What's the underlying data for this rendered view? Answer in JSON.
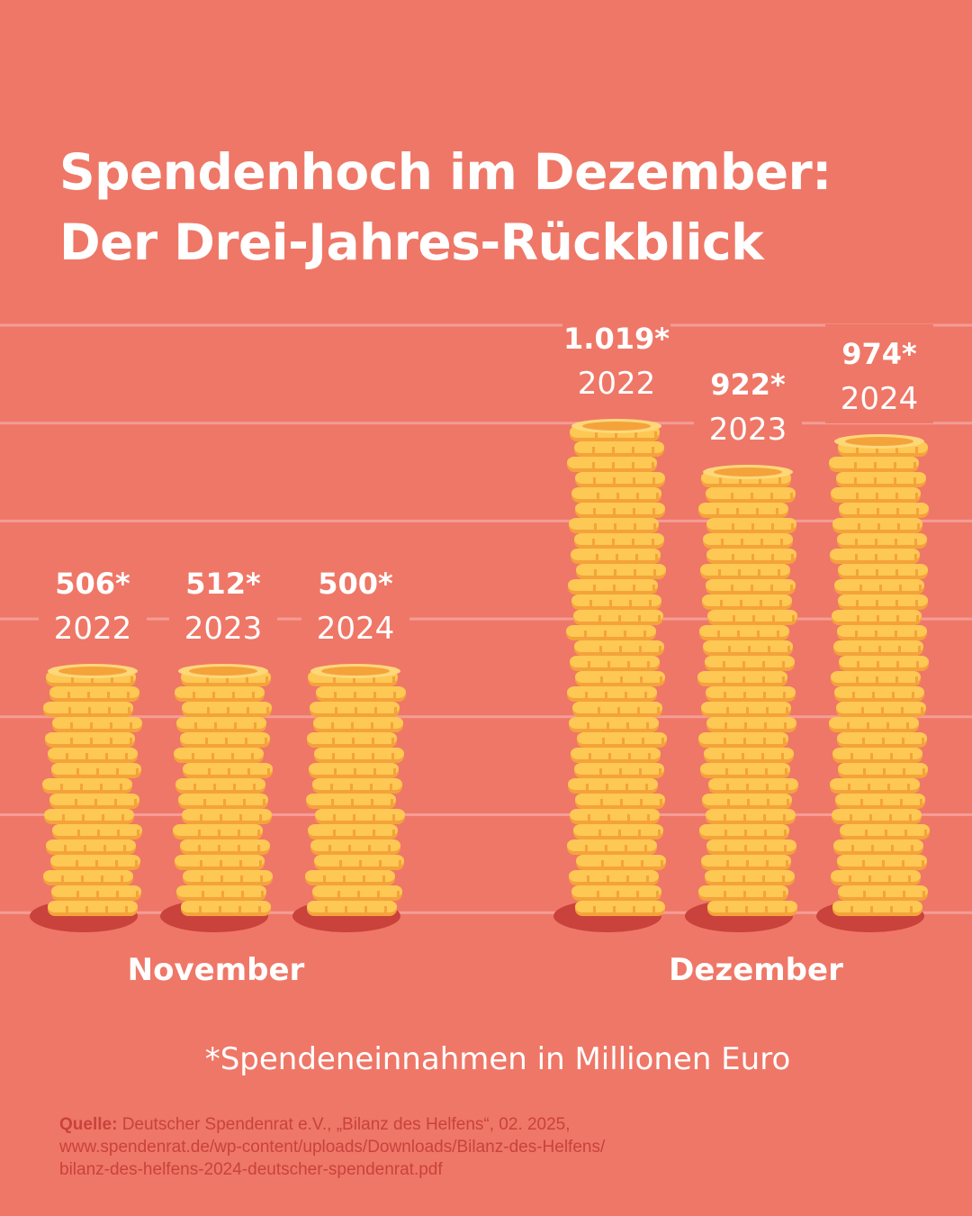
{
  "title_line1": "Spendenhoch im Dezember:",
  "title_line2": "Der Drei-Jahres-Rückblick",
  "footnote": "*Spendeneinnahmen in Millionen Euro",
  "source": {
    "label": "Quelle:",
    "line1": "Deutscher Spendenrat e.V., „Bilanz des Helfens“, 02. 2025,",
    "line2": "www.spendenrat.de/wp-content/uploads/Downloads/Bilanz-des-Helfens/",
    "line3": "bilanz-des-helfens-2024-deutscher-spendenrat.pdf"
  },
  "colors": {
    "background": "#ef7767",
    "grid": "#f49d96",
    "coin": "#fdc853",
    "coin_edge": "#f4a33a",
    "shadow": "#c9423c"
  },
  "chart_data": {
    "type": "bar",
    "title": "Spendenhoch im Dezember: Der Drei-Jahres-Rückblick",
    "unit": "Millionen Euro",
    "groups": [
      "November",
      "Dezember"
    ],
    "series": [
      {
        "group": "November",
        "year": "2022",
        "value": 506,
        "label": "506*"
      },
      {
        "group": "November",
        "year": "2023",
        "value": 512,
        "label": "512*"
      },
      {
        "group": "November",
        "year": "2024",
        "value": 500,
        "label": "500*"
      },
      {
        "group": "Dezember",
        "year": "2022",
        "value": 1019,
        "label": "1.019*"
      },
      {
        "group": "Dezember",
        "year": "2023",
        "value": 922,
        "label": "922*"
      },
      {
        "group": "Dezember",
        "year": "2024",
        "value": 974,
        "label": "974*"
      }
    ],
    "ylim": [
      0,
      1100
    ],
    "grid": true
  }
}
